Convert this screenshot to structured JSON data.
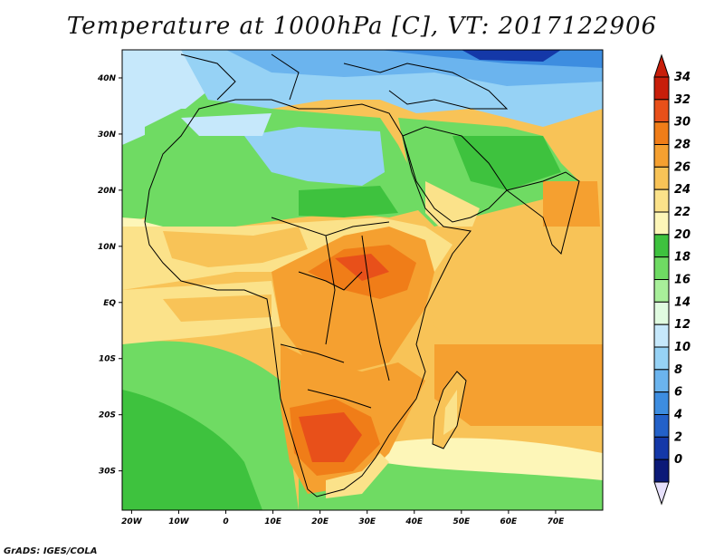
{
  "title": "Temperature at 1000hPa [C], VT: 2017122906",
  "credit": "GrADS: IGES/COLA",
  "map": {
    "lat_labels": [
      {
        "text": "40N",
        "lat": 40
      },
      {
        "text": "30N",
        "lat": 30
      },
      {
        "text": "20N",
        "lat": 20
      },
      {
        "text": "10N",
        "lat": 10
      },
      {
        "text": "EQ",
        "lat": 0
      },
      {
        "text": "10S",
        "lat": -10
      },
      {
        "text": "20S",
        "lat": -20
      },
      {
        "text": "30S",
        "lat": -30
      }
    ],
    "lon_labels": [
      {
        "text": "20W",
        "lon": -20
      },
      {
        "text": "10W",
        "lon": -10
      },
      {
        "text": "0",
        "lon": 0
      },
      {
        "text": "10E",
        "lon": 10
      },
      {
        "text": "20E",
        "lon": 20
      },
      {
        "text": "30E",
        "lon": 30
      },
      {
        "text": "40E",
        "lon": 40
      },
      {
        "text": "50E",
        "lon": 50
      },
      {
        "text": "60E",
        "lon": 60
      },
      {
        "text": "70E",
        "lon": 70
      }
    ]
  },
  "colorbar": {
    "levels": [
      {
        "label": "34",
        "color": "#c81e0a"
      },
      {
        "label": "32",
        "color": "#e8501a"
      },
      {
        "label": "30",
        "color": "#f07d18"
      },
      {
        "label": "28",
        "color": "#f5a030"
      },
      {
        "label": "26",
        "color": "#f8c357"
      },
      {
        "label": "24",
        "color": "#fbe28a"
      },
      {
        "label": "22",
        "color": "#fdf6b8"
      },
      {
        "label": "20",
        "color": "#3ec23e"
      },
      {
        "label": "18",
        "color": "#6fdb63"
      },
      {
        "label": "16",
        "color": "#a8ef9a"
      },
      {
        "label": "14",
        "color": "#e0fbe0"
      },
      {
        "label": "12",
        "color": "#c6e8fb"
      },
      {
        "label": "10",
        "color": "#96d2f5"
      },
      {
        "label": "8",
        "color": "#6bb4ee"
      },
      {
        "label": "6",
        "color": "#3d8de0"
      },
      {
        "label": "4",
        "color": "#2361c9"
      },
      {
        "label": "2",
        "color": "#1438a8"
      },
      {
        "label": "0",
        "color": "#0c1a78"
      }
    ],
    "top_arrow_color": "#c81e0a",
    "bottom_arrow_color": "#e6e0fb"
  }
}
